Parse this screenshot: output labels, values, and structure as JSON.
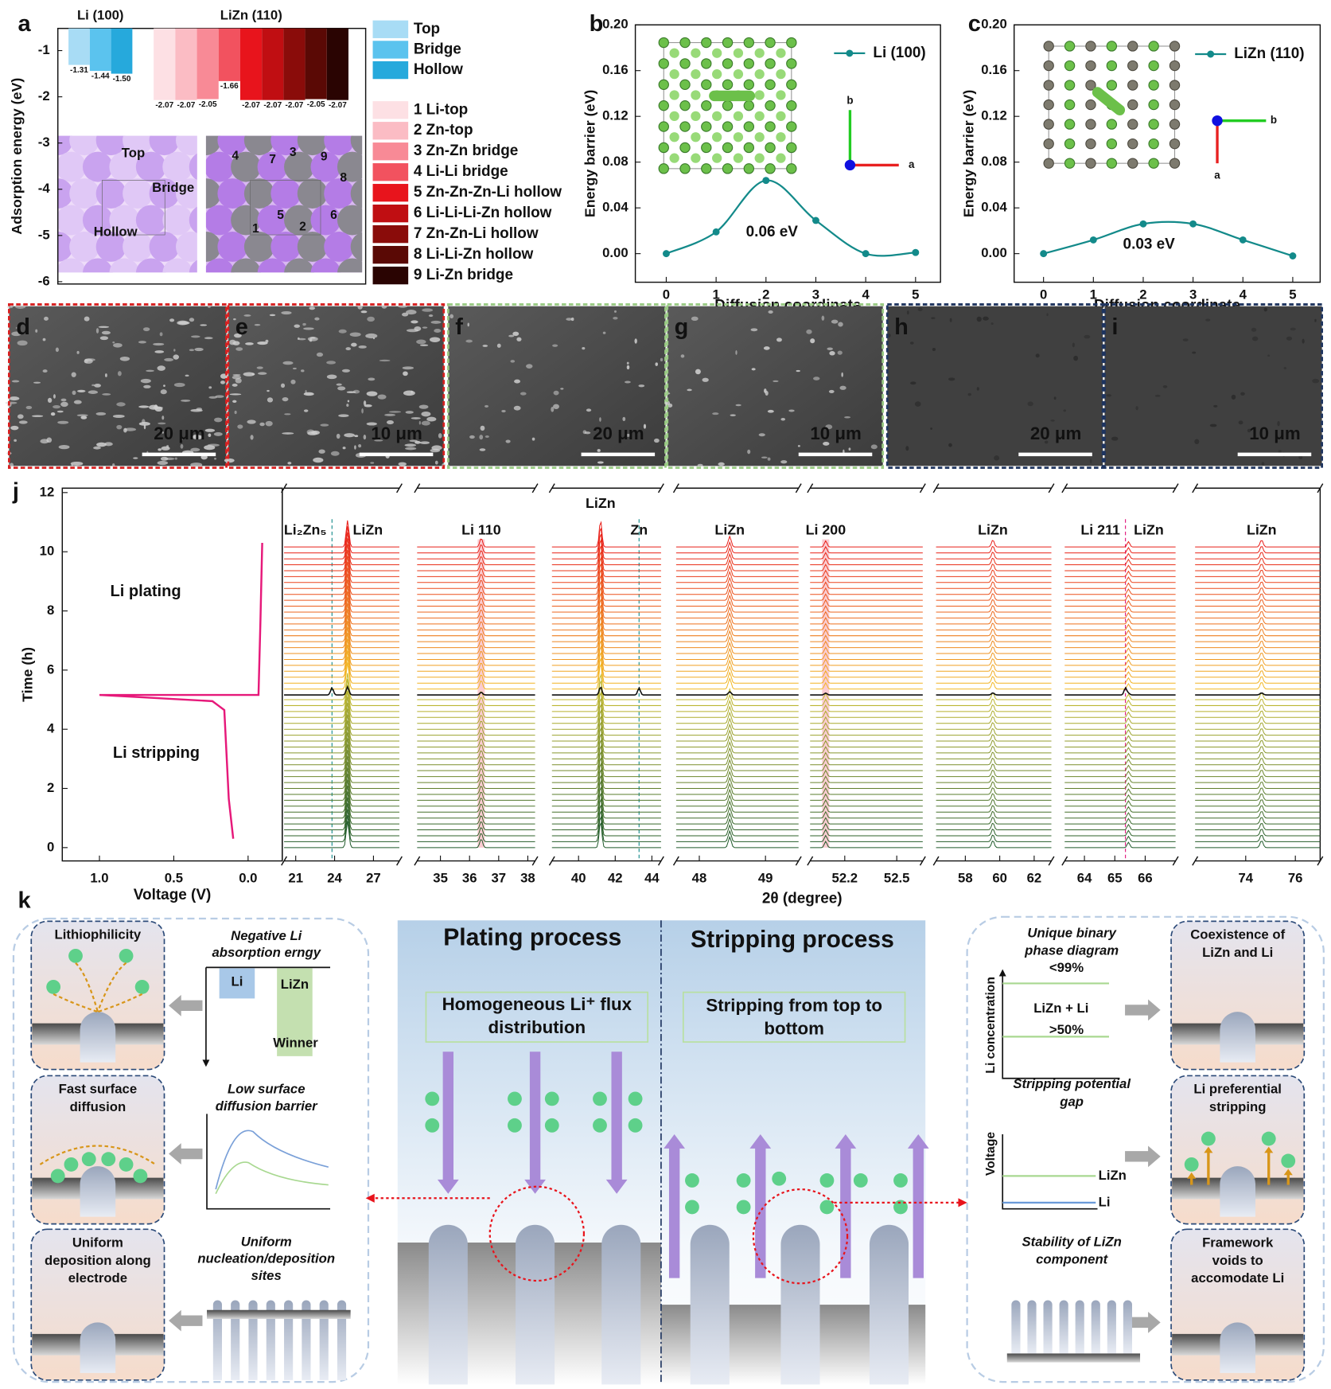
{
  "chart_data": [
    {
      "label": "a",
      "type": "bar",
      "y_label": "Adsorption energy (eV)",
      "ylim": [
        -6.05,
        -0.52
      ],
      "yticks": [
        -1,
        -2,
        -3,
        -4,
        -5,
        -6
      ],
      "groups": [
        {
          "title": "Li (100)",
          "values": [
            -1.31,
            -1.44,
            -1.5
          ],
          "value_labels": [
            "-1.31",
            "-1.44",
            "-1.50"
          ],
          "colors": [
            "#a8dcf5",
            "#5bc3ee",
            "#26a9dc"
          ],
          "legend": [
            "Top",
            "Bridge",
            "Hollow"
          ]
        },
        {
          "title": "LiZn (110)",
          "values": [
            -2.07,
            -2.07,
            -2.05,
            -1.66,
            -2.07,
            -2.07,
            -2.07,
            -2.05,
            -2.07
          ],
          "value_labels": [
            "-2.07",
            "-2.07",
            "-2.05",
            "-1.66",
            "-2.07",
            "-2.07",
            "-2.07",
            "-2.05",
            "-2.07"
          ],
          "colors": [
            "#fde0e4",
            "#fbbcc4",
            "#f88a96",
            "#f2525f",
            "#e8141c",
            "#c00e12",
            "#8a0c0a",
            "#5a0905",
            "#2a0402"
          ],
          "legend": [
            "1 Li-top",
            "2 Zn-top",
            "3 Zn-Zn bridge",
            "4 Li-Li bridge",
            "5 Zn-Zn-Zn-Li hollow",
            "6 Li-Li-Li-Zn hollow",
            "7 Zn-Zn-Li hollow",
            "8 Li-Li-Zn hollow",
            "9 Li-Zn bridge"
          ]
        }
      ],
      "site_labels": [
        "Top",
        "Bridge",
        "Hollow"
      ],
      "site_numbers": [
        "1",
        "2",
        "3",
        "4",
        "5",
        "6",
        "7",
        "8",
        "9"
      ]
    },
    {
      "label": "b",
      "type": "line",
      "x": [
        0,
        1,
        2,
        3,
        4,
        5
      ],
      "series": [
        {
          "name": "Li (100)",
          "color": "#138a8a",
          "values": [
            0,
            0.019,
            0.064,
            0.029,
            0,
            0.001
          ]
        }
      ],
      "xlim": [
        -0.62,
        5.5
      ],
      "xticks": [
        0,
        1,
        2,
        3,
        4,
        5
      ],
      "ylim": [
        -0.025,
        0.2
      ],
      "yticks": [
        {
          "value": 0,
          "label": "0.00"
        },
        0.04,
        0.08,
        0.12,
        0.16,
        {
          "value": 0.2,
          "label": "0.20"
        }
      ],
      "x_label": "Diffusion coordinate",
      "y_label": "Energy barrier (eV)",
      "annotation": "0.06 eV",
      "inset_axis_labels": [
        "b",
        "a"
      ]
    },
    {
      "label": "c",
      "type": "line",
      "x": [
        0,
        1,
        2,
        3,
        4,
        5
      ],
      "series": [
        {
          "name": "LiZn (110)",
          "color": "#138a8a",
          "values": [
            0,
            0.012,
            0.026,
            0.026,
            0.012,
            -0.002
          ]
        }
      ],
      "xlim": [
        -0.59,
        5.55
      ],
      "xticks": [
        0,
        1,
        2,
        3,
        4,
        5
      ],
      "ylim": [
        -0.025,
        0.2
      ],
      "yticks": [
        {
          "value": 0,
          "label": "0.00"
        },
        0.04,
        0.08,
        0.12,
        0.16,
        {
          "value": 0.2,
          "label": "0.20"
        }
      ],
      "x_label": "Diffusion coordinate",
      "y_label": "Energy barrier (eV)",
      "annotation": "0.03 eV",
      "inset_axis_labels": [
        "b",
        "a"
      ]
    },
    {
      "label": "j",
      "type": "line",
      "x": [
        0.1,
        0.13,
        0.16,
        0.2,
        0.24,
        1.0,
        -0.07,
        -0.083,
        -0.095
      ],
      "values": [
        0.3,
        1.65,
        4.65,
        4.8,
        4.95,
        5.16,
        5.16,
        7.65,
        10.3
      ],
      "color": "#e6197a",
      "xlim": [
        1.25,
        -0.23
      ],
      "xticks": [
        {
          "value": 1,
          "label": "1.0"
        },
        0.5,
        {
          "value": 0,
          "label": "0.0"
        }
      ],
      "ylim": [
        -0.45,
        12.15
      ],
      "yticks": [
        0,
        2,
        4,
        6,
        8,
        10,
        12
      ],
      "x_label": "Voltage (V)",
      "y_label": "Time (h)",
      "annotations": [
        "Li plating",
        "Li stripping"
      ]
    },
    {
      "type": "xrd",
      "x_label": "2θ (degree)",
      "panels": [
        {
          "xlim": [
            20.1,
            29.0
          ],
          "xticks": [
            21,
            24,
            27
          ],
          "peaks": [
            {
              "label": "Li₂Zn₅",
              "position": 23.8,
              "color": "#138a8a",
              "style": "dashed"
            },
            {
              "label": "LiZn",
              "position": 25.0,
              "color": "#111111",
              "style": "peak"
            }
          ]
        },
        {
          "xlim": [
            34.2,
            38.25
          ],
          "xticks": [
            35,
            36,
            37,
            38
          ],
          "peaks": [
            {
              "label": "Li 110",
              "position": 36.4,
              "color": "#e0147a",
              "style": "band"
            }
          ]
        },
        {
          "xlim": [
            38.55,
            44.5
          ],
          "xticks": [
            40,
            42,
            44
          ],
          "peaks": [
            {
              "label": "LiZn",
              "position": 41.2,
              "color": "#111111",
              "style": "peak"
            },
            {
              "label": "Zn",
              "position": 43.3,
              "color": "#138a8a",
              "style": "dashed"
            }
          ]
        },
        {
          "xlim": [
            47.65,
            49.5
          ],
          "xticks": [
            48,
            49
          ],
          "peaks": [
            {
              "label": "LiZn",
              "position": 48.46,
              "color": "#111111",
              "style": "peak"
            }
          ]
        },
        {
          "xlim": [
            52.0,
            52.65
          ],
          "xticks": [
            52.2,
            52.5
          ],
          "peaks": [
            {
              "label": "Li 200",
              "position": 52.09,
              "color": "#e0147a",
              "style": "band"
            }
          ]
        },
        {
          "xlim": [
            56.3,
            63.0
          ],
          "xticks": [
            58,
            60,
            62
          ],
          "peaks": [
            {
              "label": "LiZn",
              "position": 59.6,
              "color": "#111111",
              "style": "peak"
            }
          ]
        },
        {
          "xlim": [
            63.35,
            67.0
          ],
          "xticks": [
            64,
            65,
            66
          ],
          "peaks": [
            {
              "label": "Li 211",
              "position": 65.35,
              "color": "#e0147a",
              "style": "dashed"
            },
            {
              "label": "LiZn",
              "position": 65.45,
              "color": "#111111",
              "style": "peak"
            }
          ]
        },
        {
          "xlim": [
            71.96,
            77.0
          ],
          "xticks": [
            74,
            76
          ],
          "peaks": [
            {
              "label": "LiZn",
              "position": 74.64,
              "color": "#111111",
              "style": "peak"
            }
          ]
        }
      ]
    }
  ],
  "sem": {
    "panels": [
      {
        "label": "d",
        "scale_bar": "20 μm",
        "border": "#d92020"
      },
      {
        "label": "e",
        "scale_bar": "10 μm",
        "border": "#d92020"
      },
      {
        "label": "f",
        "scale_bar": "20 μm",
        "border": "#9acb84"
      },
      {
        "label": "g",
        "scale_bar": "10 μm",
        "border": "#9acb84"
      },
      {
        "label": "h",
        "scale_bar": "20 μm",
        "border": "#1f3560"
      },
      {
        "label": "i",
        "scale_bar": "10 μm",
        "border": "#1f3560"
      }
    ]
  },
  "schematic": {
    "label": "k",
    "left": {
      "cards": [
        {
          "title": [
            "Lithiophilicity"
          ],
          "caption": [
            "Negative Li",
            "absorption erngy"
          ]
        },
        {
          "title": [
            "Fast surface",
            "diffusion"
          ],
          "caption": [
            "Low surface",
            "diffusion barrier"
          ]
        },
        {
          "title": [
            "Uniform",
            "deposition along",
            "electrode"
          ],
          "caption": [
            "Uniform",
            "nucleation/deposition",
            "sites"
          ]
        }
      ],
      "energy_labels": [
        "Li",
        "LiZn",
        "Winner"
      ]
    },
    "center": {
      "plating": {
        "title": "Plating process",
        "note": [
          "Homogeneous Li⁺ flux",
          "distribution"
        ]
      },
      "stripping": {
        "title": "Stripping process",
        "note": [
          "Stripping from top to",
          "bottom"
        ]
      }
    },
    "right": {
      "cards": [
        {
          "title": [
            "Coexistence of",
            "LiZn and Li"
          ],
          "caption": [
            "Unique binary",
            "phase diagram"
          ]
        },
        {
          "title": [
            "Li preferential",
            "stripping"
          ],
          "caption": [
            "Stripping potential",
            "gap"
          ]
        },
        {
          "title": [
            "Framework",
            "voids to",
            "accomodate Li"
          ],
          "caption": [
            "Stability of LiZn",
            "component"
          ]
        }
      ],
      "phase_axis": "Li concentration",
      "phase_labels": [
        "<99%",
        "LiZn + Li",
        ">50%"
      ],
      "voltage_axis": "Voltage",
      "voltage_labels": [
        "LiZn",
        "Li"
      ]
    }
  }
}
